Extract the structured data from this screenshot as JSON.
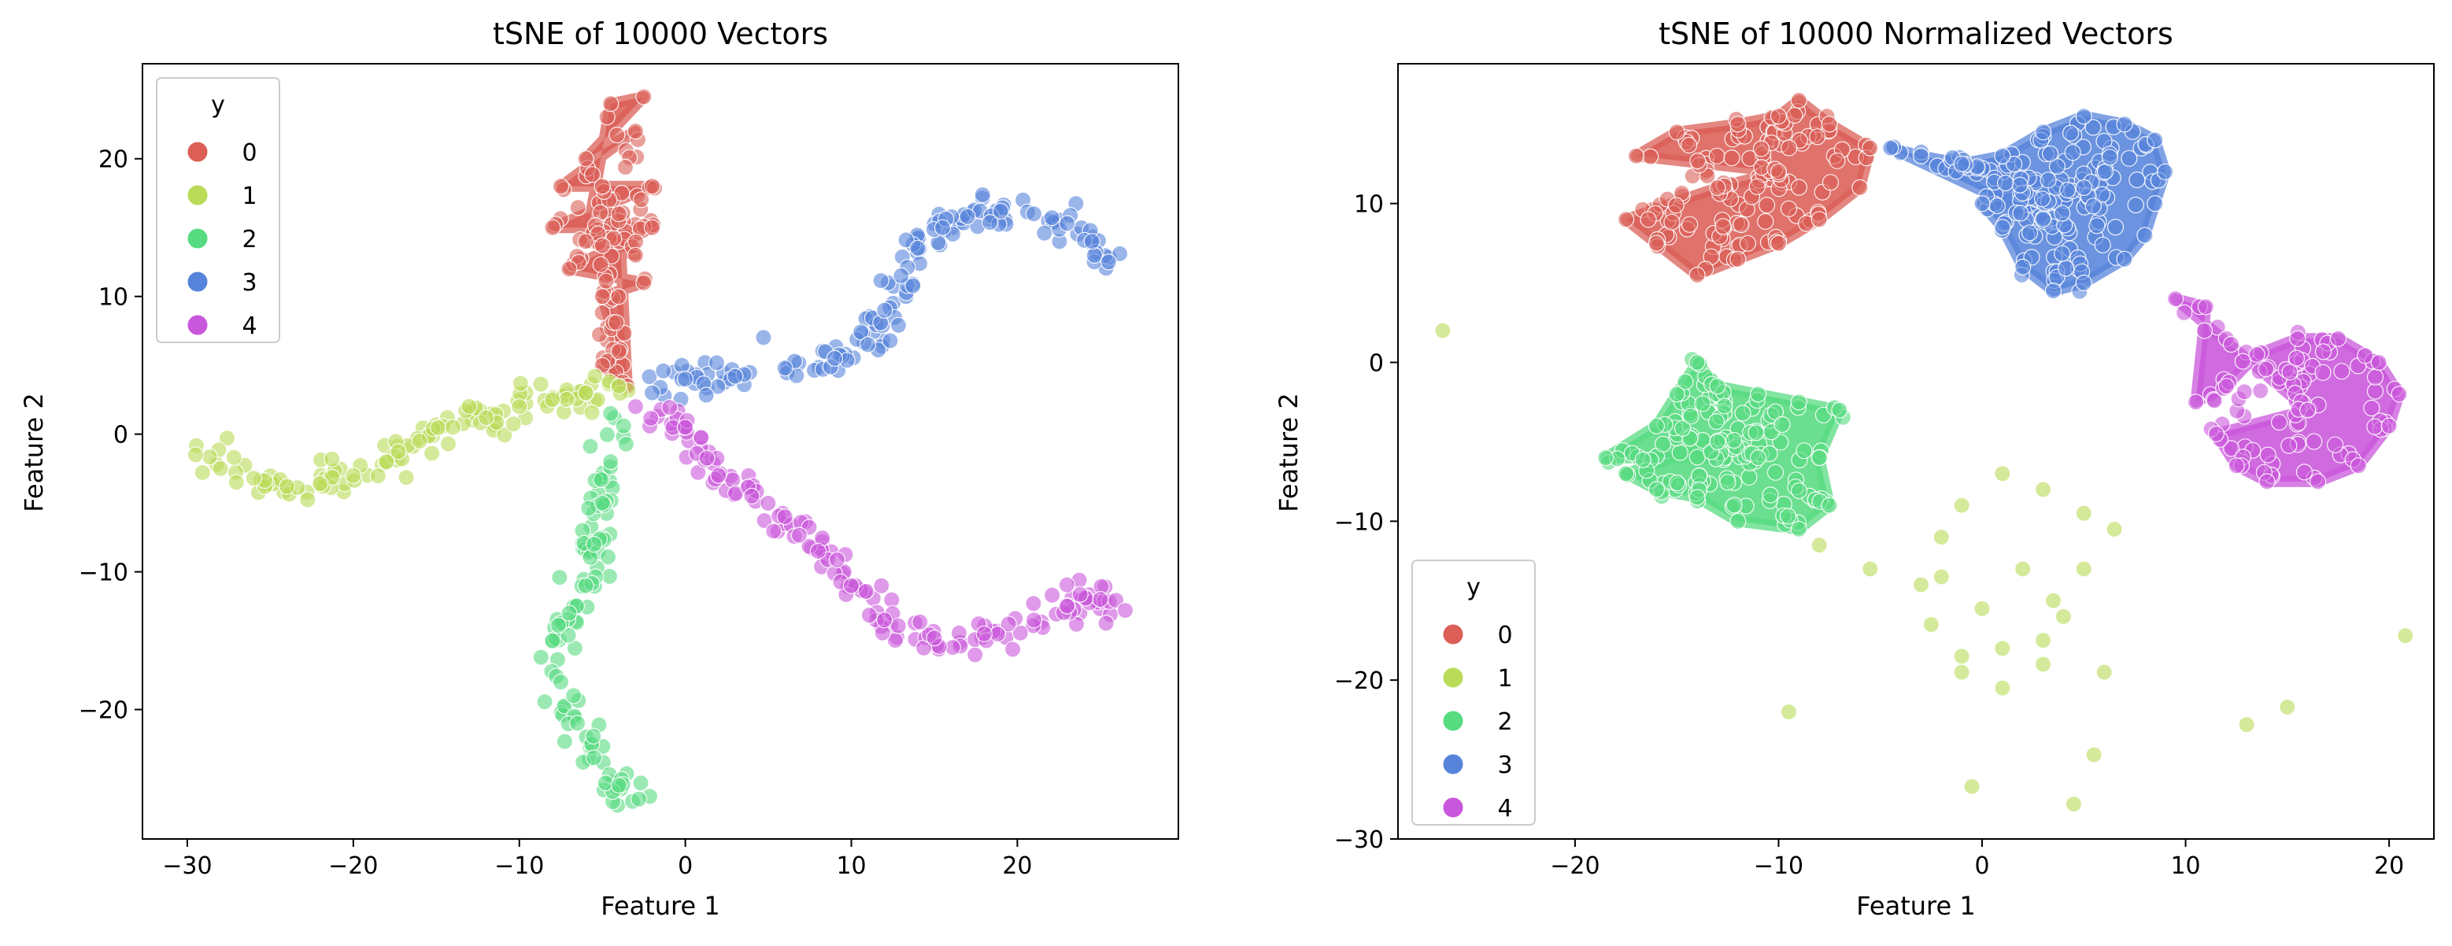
{
  "chart_data": [
    {
      "type": "scatter",
      "title": "tSNE of 10000 Vectors",
      "xlabel": "Feature 1",
      "ylabel": "Feature 2",
      "xlim": [
        -32.7,
        29.7
      ],
      "ylim": [
        -29.4,
        26.9
      ],
      "xticks": [
        -30,
        -20,
        -10,
        0,
        10,
        20
      ],
      "yticks": [
        -20,
        -10,
        0,
        10,
        20
      ],
      "xtick_labels": [
        "−30",
        "−20",
        "−10",
        "0",
        "10",
        "20"
      ],
      "ytick_labels": [
        "−20",
        "−10",
        "0",
        "10",
        "20"
      ],
      "grid": false,
      "legend": {
        "title": "y",
        "placement": "top-left",
        "entries": [
          "0",
          "1",
          "2",
          "3",
          "4"
        ]
      },
      "series": [
        {
          "name": "0",
          "color": "#db5f57",
          "shape": "blob",
          "points": [
            [
              -4.5,
              24
            ],
            [
              -2.5,
              24.5
            ],
            [
              -6,
              20
            ],
            [
              -3,
              22
            ],
            [
              -7.5,
              18
            ],
            [
              -2,
              18
            ],
            [
              -8,
              15
            ],
            [
              -2,
              15
            ],
            [
              -7,
              12
            ],
            [
              -2.5,
              11
            ],
            [
              -5,
              10
            ],
            [
              -4,
              6
            ],
            [
              -5,
              5
            ],
            [
              -3.5,
              3.5
            ],
            [
              -4,
              16
            ],
            [
              -5,
              18
            ],
            [
              -3,
              13
            ],
            [
              -6,
              14
            ]
          ]
        },
        {
          "name": "1",
          "color": "#b9db57",
          "shape": "path",
          "points": [
            [
              -29.5,
              -1.5
            ],
            [
              -28,
              -2.5
            ],
            [
              -26,
              -3.2
            ],
            [
              -24,
              -3.8
            ],
            [
              -22,
              -3.6
            ],
            [
              -20,
              -3
            ],
            [
              -18,
              -2
            ],
            [
              -16,
              -0.5
            ],
            [
              -14,
              0.5
            ],
            [
              -12,
              1.2
            ],
            [
              -10,
              2
            ],
            [
              -8,
              2.5
            ],
            [
              -6,
              3
            ],
            [
              -4,
              3.5
            ]
          ]
        },
        {
          "name": "2",
          "color": "#57db80",
          "shape": "path",
          "points": [
            [
              -4.5,
              1.5
            ],
            [
              -4.5,
              -2
            ],
            [
              -5,
              -5
            ],
            [
              -5.5,
              -8
            ],
            [
              -6,
              -11
            ],
            [
              -7,
              -13
            ],
            [
              -8,
              -15
            ],
            [
              -7.5,
              -18
            ],
            [
              -6.5,
              -21
            ],
            [
              -5.5,
              -23.5
            ],
            [
              -4,
              -25.5
            ],
            [
              -2.8,
              -26.5
            ]
          ]
        },
        {
          "name": "3",
          "color": "#5784db",
          "shape": "path",
          "points": [
            [
              -2,
              3
            ],
            [
              0,
              4
            ],
            [
              3,
              4.2
            ],
            [
              6,
              4.8
            ],
            [
              9,
              5.5
            ],
            [
              11,
              6.5
            ],
            [
              12,
              9
            ],
            [
              13,
              11.5
            ],
            [
              14,
              13.5
            ],
            [
              15.5,
              15
            ],
            [
              17,
              15.8
            ],
            [
              19,
              16.2
            ],
            [
              21,
              16
            ],
            [
              23,
              15.3
            ],
            [
              24.5,
              14
            ],
            [
              25.5,
              12.5
            ]
          ]
        },
        {
          "name": "4",
          "color": "#c957db",
          "shape": "path",
          "points": [
            [
              -3,
              2
            ],
            [
              0,
              0.5
            ],
            [
              2,
              -3
            ],
            [
              4,
              -4.5
            ],
            [
              6,
              -6
            ],
            [
              8,
              -8.5
            ],
            [
              10,
              -11
            ],
            [
              12,
              -13.5
            ],
            [
              15,
              -14.8
            ],
            [
              18,
              -14.5
            ],
            [
              21,
              -13.5
            ],
            [
              23,
              -12.5
            ],
            [
              25,
              -12
            ],
            [
              26.5,
              -12.8
            ]
          ]
        }
      ]
    },
    {
      "type": "scatter",
      "title": "tSNE of 10000 Normalized Vectors",
      "xlabel": "Feature 1",
      "ylabel": "Feature 2",
      "xlim": [
        -28.7,
        22.2
      ],
      "ylim": [
        -30,
        18.8
      ],
      "xticks": [
        -20,
        -10,
        0,
        10,
        20
      ],
      "yticks": [
        -30,
        -20,
        -10,
        0,
        10
      ],
      "xtick_labels": [
        "−20",
        "−10",
        "0",
        "10",
        "20"
      ],
      "ytick_labels": [
        "−30",
        "−20",
        "−10",
        "0",
        "10"
      ],
      "grid": false,
      "legend": {
        "title": "y",
        "placement": "bottom-left",
        "entries": [
          "0",
          "1",
          "2",
          "3",
          "4"
        ]
      },
      "series": [
        {
          "name": "0",
          "color": "#db5f57",
          "shape": "blob",
          "points": [
            [
              -17,
              13
            ],
            [
              -15,
              14.5
            ],
            [
              -12,
              15
            ],
            [
              -10,
              15.5
            ],
            [
              -9,
              16.5
            ],
            [
              -7.5,
              15
            ],
            [
              -5.5,
              13.5
            ],
            [
              -6,
              11
            ],
            [
              -8,
              9
            ],
            [
              -10,
              7.5
            ],
            [
              -12,
              6.5
            ],
            [
              -14,
              5.5
            ],
            [
              -16,
              7.5
            ],
            [
              -17.5,
              9
            ],
            [
              -13,
              11
            ],
            [
              -10,
              12
            ]
          ]
        },
        {
          "name": "1",
          "color": "#b9db57",
          "shape": "scatter",
          "points": [
            [
              -26.5,
              2
            ],
            [
              -8,
              -11.5
            ],
            [
              -5.5,
              -13
            ],
            [
              -3,
              -14
            ],
            [
              -2,
              -11
            ],
            [
              -1,
              -9
            ],
            [
              1,
              -7
            ],
            [
              3,
              -8
            ],
            [
              5,
              -9.5
            ],
            [
              6.5,
              -10.5
            ],
            [
              5,
              -13
            ],
            [
              4,
              -16
            ],
            [
              3,
              -17.5
            ],
            [
              1,
              -18
            ],
            [
              -1,
              -18.5
            ],
            [
              -2.5,
              -16.5
            ],
            [
              -2,
              -13.5
            ],
            [
              2,
              -13
            ],
            [
              3.5,
              -15
            ],
            [
              0,
              -15.5
            ],
            [
              -1,
              -19.5
            ],
            [
              1,
              -20.5
            ],
            [
              3,
              -19
            ],
            [
              6,
              -19.5
            ],
            [
              -9.5,
              -22
            ],
            [
              -0.5,
              -26.7
            ],
            [
              5.5,
              -24.7
            ],
            [
              4.5,
              -27.8
            ],
            [
              15,
              -21.7
            ],
            [
              13,
              -22.8
            ],
            [
              20.8,
              -17.2
            ]
          ]
        },
        {
          "name": "2",
          "color": "#57db80",
          "shape": "blob",
          "points": [
            [
              -18.5,
              -6
            ],
            [
              -16,
              -4
            ],
            [
              -15,
              -2
            ],
            [
              -14,
              0
            ],
            [
              -13,
              -1.5
            ],
            [
              -11,
              -2
            ],
            [
              -9,
              -2.5
            ],
            [
              -7,
              -3
            ],
            [
              -8,
              -6
            ],
            [
              -7.5,
              -9
            ],
            [
              -9,
              -10.5
            ],
            [
              -12,
              -10
            ],
            [
              -14,
              -8.5
            ],
            [
              -16,
              -8
            ],
            [
              -17.5,
              -7
            ],
            [
              -13,
              -5
            ],
            [
              -11,
              -6
            ]
          ]
        },
        {
          "name": "3",
          "color": "#5784db",
          "shape": "blob",
          "points": [
            [
              -4.5,
              13.5
            ],
            [
              -3,
              13
            ],
            [
              -1,
              12.5
            ],
            [
              1,
              13
            ],
            [
              3,
              14.5
            ],
            [
              5,
              15.5
            ],
            [
              7,
              15
            ],
            [
              8.5,
              14
            ],
            [
              9,
              12
            ],
            [
              8.5,
              10
            ],
            [
              8,
              8
            ],
            [
              7,
              6.5
            ],
            [
              5,
              5
            ],
            [
              3.5,
              4.5
            ],
            [
              2,
              6
            ],
            [
              1,
              8.5
            ],
            [
              0,
              10
            ],
            [
              5,
              11
            ],
            [
              3,
              9
            ]
          ]
        },
        {
          "name": "4",
          "color": "#c957db",
          "shape": "blob",
          "points": [
            [
              10.5,
              -2.5
            ],
            [
              12,
              -1.5
            ],
            [
              13.5,
              0.5
            ],
            [
              15.5,
              1.5
            ],
            [
              17.5,
              1.5
            ],
            [
              19.5,
              0
            ],
            [
              20.5,
              -2
            ],
            [
              20,
              -4
            ],
            [
              18.5,
              -6.5
            ],
            [
              16.5,
              -7.5
            ],
            [
              14,
              -7.5
            ],
            [
              12.5,
              -6.5
            ],
            [
              11.5,
              -4.5
            ],
            [
              16,
              -3
            ],
            [
              9.5,
              4
            ],
            [
              11,
              3.5
            ]
          ]
        }
      ]
    }
  ]
}
